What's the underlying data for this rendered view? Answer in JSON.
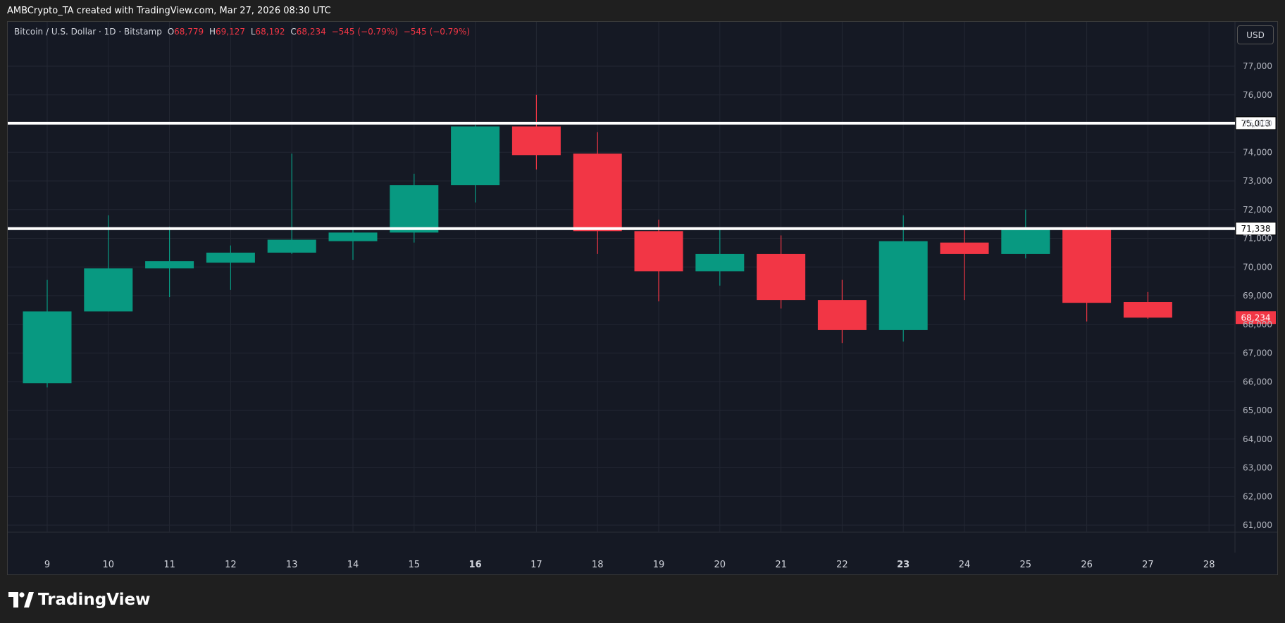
{
  "header": {
    "attribution": "AMBCrypto_TA created with TradingView.com, Mar 27, 2026 08:30 UTC"
  },
  "legend": {
    "symbol": "Bitcoin / U.S. Dollar · 1D · Bitstamp",
    "o_label": "O",
    "o_value": "68,779",
    "h_label": "H",
    "h_value": "69,127",
    "l_label": "L",
    "l_value": "68,192",
    "c_label": "C",
    "c_value": "68,234",
    "change": "−545 (−0.79%)",
    "change2": "−545 (−0.79%)"
  },
  "currency_button": "USD",
  "footer": {
    "brand": "TradingView"
  },
  "colors": {
    "up": "#089981",
    "down": "#f23645",
    "background": "#151924",
    "grid": "#232733",
    "text": "#d1d4dc",
    "level_line": "#ffffff"
  },
  "chart_data": {
    "type": "candlestick",
    "ylim": [
      60000,
      78000
    ],
    "y_ticks": [
      "61,000",
      "62,000",
      "63,000",
      "64,000",
      "65,000",
      "66,000",
      "67,000",
      "68,000",
      "69,000",
      "70,000",
      "71,000",
      "72,000",
      "73,000",
      "74,000",
      "75,000",
      "76,000",
      "77,000"
    ],
    "y_tick_values": [
      61000,
      62000,
      63000,
      64000,
      65000,
      66000,
      67000,
      68000,
      69000,
      70000,
      71000,
      72000,
      73000,
      74000,
      75000,
      76000,
      77000
    ],
    "x_ticks": [
      "9",
      "10",
      "11",
      "12",
      "13",
      "14",
      "15",
      "16",
      "17",
      "18",
      "19",
      "20",
      "21",
      "22",
      "23",
      "24",
      "25",
      "26",
      "27",
      "28"
    ],
    "bold_x_ticks": [
      "16",
      "23"
    ],
    "candles": [
      {
        "date": "9",
        "open": 65950,
        "high": 69550,
        "low": 65800,
        "close": 68450
      },
      {
        "date": "10",
        "open": 68450,
        "high": 71800,
        "low": 68450,
        "close": 69950
      },
      {
        "date": "11",
        "open": 69950,
        "high": 71400,
        "low": 68950,
        "close": 70200
      },
      {
        "date": "12",
        "open": 70150,
        "high": 70750,
        "low": 69200,
        "close": 70500
      },
      {
        "date": "13",
        "open": 70500,
        "high": 73950,
        "low": 70450,
        "close": 70950
      },
      {
        "date": "14",
        "open": 70900,
        "high": 71300,
        "low": 70250,
        "close": 71200
      },
      {
        "date": "15",
        "open": 71200,
        "high": 73250,
        "low": 70850,
        "close": 72850
      },
      {
        "date": "16",
        "open": 72850,
        "high": 74950,
        "low": 72250,
        "close": 74900
      },
      {
        "date": "17",
        "open": 74900,
        "high": 76000,
        "low": 73400,
        "close": 73900
      },
      {
        "date": "18",
        "open": 73950,
        "high": 74700,
        "low": 70450,
        "close": 71250
      },
      {
        "date": "19",
        "open": 71250,
        "high": 71650,
        "low": 68800,
        "close": 69850
      },
      {
        "date": "20",
        "open": 69850,
        "high": 71350,
        "low": 69350,
        "close": 70450
      },
      {
        "date": "21",
        "open": 70450,
        "high": 71100,
        "low": 68550,
        "close": 68850
      },
      {
        "date": "22",
        "open": 68850,
        "high": 69550,
        "low": 67350,
        "close": 67800
      },
      {
        "date": "23",
        "open": 67800,
        "high": 71800,
        "low": 67400,
        "close": 70900
      },
      {
        "date": "24",
        "open": 70850,
        "high": 71400,
        "low": 68850,
        "close": 70450
      },
      {
        "date": "25",
        "open": 70450,
        "high": 72000,
        "low": 70300,
        "close": 71300
      },
      {
        "date": "26",
        "open": 71300,
        "high": 71400,
        "low": 68100,
        "close": 68750
      },
      {
        "date": "27",
        "open": 68779,
        "high": 69127,
        "low": 68192,
        "close": 68234
      }
    ],
    "horizontal_levels": [
      {
        "value": 75013,
        "label": "75,013"
      },
      {
        "value": 71338,
        "label": "71,338"
      }
    ],
    "last_price": {
      "value": 68234,
      "label": "68,234"
    }
  }
}
